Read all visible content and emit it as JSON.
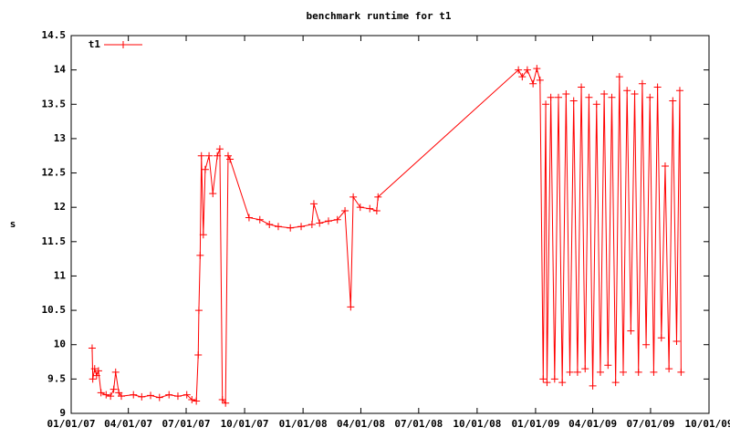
{
  "chart_data": {
    "type": "line",
    "title": "benchmark runtime for t1",
    "y_label": "s",
    "x": [
      "2007-02-03",
      "2007-02-04",
      "2007-02-07",
      "2007-02-10",
      "2007-02-13",
      "2007-02-17",
      "2007-02-25",
      "2007-03-04",
      "2007-03-09",
      "2007-03-12",
      "2007-03-17",
      "2007-03-21",
      "2007-04-09",
      "2007-04-22",
      "2007-05-06",
      "2007-05-20",
      "2007-06-04",
      "2007-06-18",
      "2007-07-02",
      "2007-07-10",
      "2007-07-17",
      "2007-07-20",
      "2007-07-21",
      "2007-07-23",
      "2007-07-25",
      "2007-07-28",
      "2007-07-31",
      "2007-08-06",
      "2007-08-12",
      "2007-08-19",
      "2007-08-23",
      "2007-08-27",
      "2007-09-01",
      "2007-09-05",
      "2007-09-08",
      "2007-10-08",
      "2007-10-25",
      "2007-11-09",
      "2007-11-23",
      "2007-12-12",
      "2007-12-29",
      "2008-01-15",
      "2008-01-18",
      "2008-01-27",
      "2008-02-10",
      "2008-02-24",
      "2008-03-07",
      "2008-03-16",
      "2008-03-20",
      "2008-03-31",
      "2008-04-15",
      "2008-04-26",
      "2008-04-28",
      "2008-12-05",
      "2008-12-11",
      "2008-12-19",
      "2008-12-28",
      "2009-01-03",
      "2009-01-08",
      "2009-01-13",
      "2009-01-17",
      "2009-01-19",
      "2009-01-25",
      "2009-01-31",
      "2009-02-06",
      "2009-02-12",
      "2009-02-18",
      "2009-02-24",
      "2009-03-02",
      "2009-03-08",
      "2009-03-14",
      "2009-03-20",
      "2009-03-26",
      "2009-04-01",
      "2009-04-07",
      "2009-04-13",
      "2009-04-19",
      "2009-04-25",
      "2009-05-01",
      "2009-05-07",
      "2009-05-13",
      "2009-05-19",
      "2009-05-25",
      "2009-05-31",
      "2009-06-06",
      "2009-06-12",
      "2009-06-18",
      "2009-06-24",
      "2009-06-30",
      "2009-07-06",
      "2009-07-12",
      "2009-07-18",
      "2009-07-24",
      "2009-07-30",
      "2009-08-05",
      "2009-08-11",
      "2009-08-16",
      "2009-08-18"
    ],
    "series": [
      {
        "name": "t1",
        "color": "#ff0000",
        "values": [
          9.95,
          9.5,
          9.65,
          9.55,
          9.62,
          9.3,
          9.27,
          9.25,
          9.35,
          9.6,
          9.3,
          9.25,
          9.27,
          9.24,
          9.26,
          9.23,
          9.27,
          9.25,
          9.27,
          9.2,
          9.18,
          9.85,
          10.5,
          11.3,
          12.75,
          11.6,
          12.55,
          12.75,
          12.2,
          12.75,
          12.85,
          9.2,
          9.15,
          12.75,
          12.7,
          11.85,
          11.82,
          11.75,
          11.72,
          11.7,
          11.72,
          11.75,
          12.05,
          11.77,
          11.8,
          11.82,
          11.95,
          10.55,
          12.15,
          12.0,
          11.98,
          11.95,
          12.15,
          14.0,
          13.9,
          14.0,
          13.8,
          14.02,
          13.85,
          9.5,
          13.5,
          9.45,
          13.6,
          9.5,
          13.6,
          9.45,
          13.65,
          9.6,
          13.55,
          9.6,
          13.75,
          9.65,
          13.6,
          9.4,
          13.5,
          9.6,
          13.65,
          9.7,
          13.6,
          9.45,
          13.9,
          9.6,
          13.7,
          10.2,
          13.65,
          9.6,
          13.8,
          10.0,
          13.6,
          9.6,
          13.75,
          10.1,
          12.6,
          9.65,
          13.55,
          10.05,
          13.7,
          9.6
        ]
      }
    ],
    "xlim": [
      "2007-01-01",
      "2009-10-01"
    ],
    "xticks": [
      {
        "value": "2007-01-01",
        "label": "01/01/07"
      },
      {
        "value": "2007-04-01",
        "label": "04/01/07"
      },
      {
        "value": "2007-07-01",
        "label": "07/01/07"
      },
      {
        "value": "2007-10-01",
        "label": "10/01/07"
      },
      {
        "value": "2008-01-01",
        "label": "01/01/08"
      },
      {
        "value": "2008-04-01",
        "label": "04/01/08"
      },
      {
        "value": "2008-07-01",
        "label": "07/01/08"
      },
      {
        "value": "2008-10-01",
        "label": "10/01/08"
      },
      {
        "value": "2009-01-01",
        "label": "01/01/09"
      },
      {
        "value": "2009-04-01",
        "label": "04/01/09"
      },
      {
        "value": "2009-07-01",
        "label": "07/01/09"
      },
      {
        "value": "2009-10-01",
        "label": "10/01/09"
      }
    ],
    "ylim": [
      9,
      14.5
    ],
    "yticks": [
      9,
      9.5,
      10,
      10.5,
      11,
      11.5,
      12,
      12.5,
      13,
      13.5,
      14,
      14.5
    ],
    "legend": "top-left"
  }
}
